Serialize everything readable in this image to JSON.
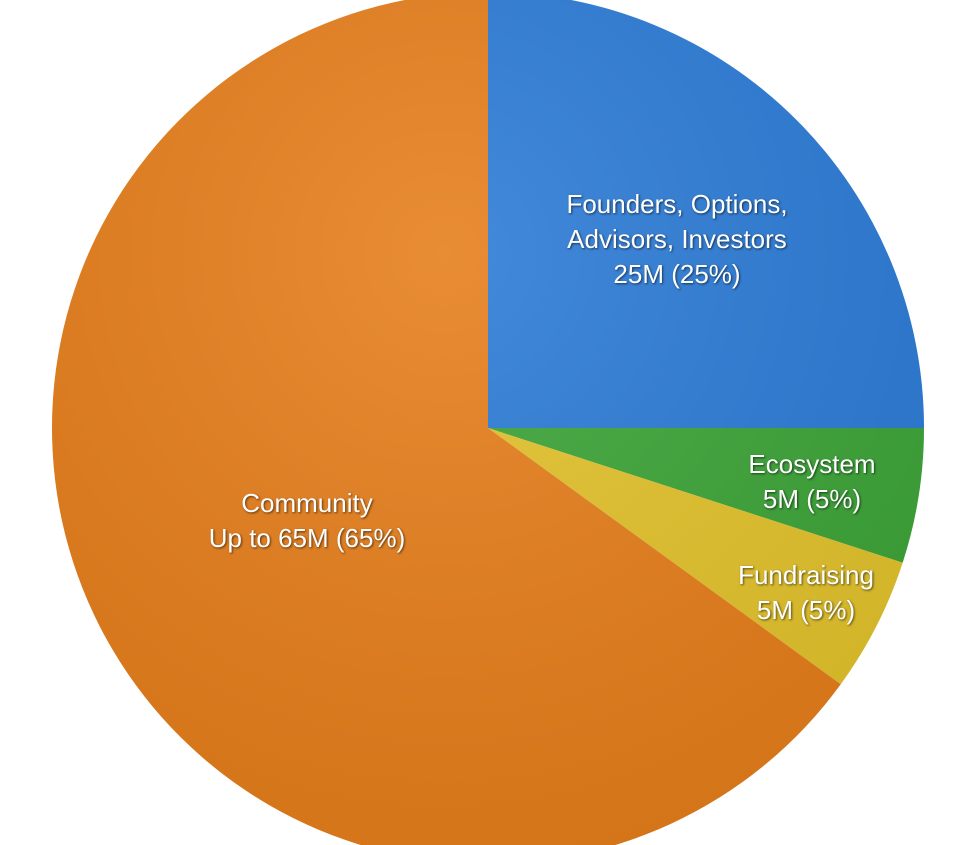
{
  "chart_data": {
    "type": "pie",
    "categories": [
      "Founders, Options, Advisors, Investors",
      "Ecosystem",
      "Fundraising",
      "Community"
    ],
    "values": [
      25,
      5,
      5,
      65
    ],
    "value_labels": [
      "25M (25%)",
      "5M (5%)",
      "5M (5%)",
      "Up to 65M (65%)"
    ],
    "colors": [
      "#2a7ad6",
      "#3ba436",
      "#e3c22a",
      "#e67d19"
    ]
  }
}
